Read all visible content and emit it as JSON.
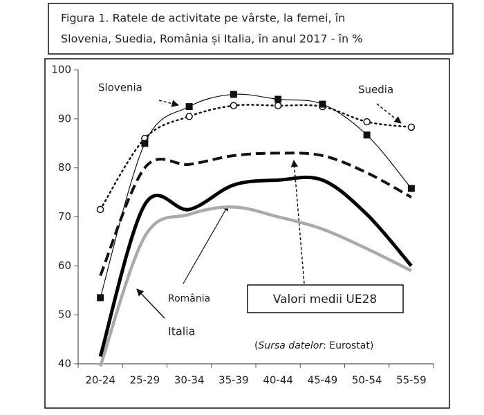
{
  "chart_data": {
    "type": "line",
    "title_lines": [
      "Figura 1. Ratele de activitate pe vârste,  la femei,  în",
      "Slovenia, Suedia, România și Italia, în anul 2017 - în %"
    ],
    "categories": [
      "20-24",
      "25-29",
      "30-34",
      "35-39",
      "40-44",
      "45-49",
      "50-54",
      "55-59"
    ],
    "ylim": [
      40,
      100
    ],
    "yticks": [
      40,
      50,
      60,
      70,
      80,
      90,
      100
    ],
    "grid": false,
    "series": [
      {
        "name": "Slovenia",
        "color": "#111111",
        "style": "solid",
        "width": 1.2,
        "marker": "square",
        "values": [
          53.5,
          85,
          92.5,
          95,
          94,
          93,
          86.7,
          75.8
        ]
      },
      {
        "name": "Suedia",
        "color": "#111111",
        "style": "dotted",
        "width": 2.5,
        "marker": "circle",
        "values": [
          71.5,
          86,
          90.5,
          92.7,
          92.7,
          92.5,
          89.4,
          88.3
        ]
      },
      {
        "name": "Valori medii UE28",
        "color": "#111111",
        "style": "dashed",
        "width": 4,
        "marker": null,
        "values": [
          58,
          80,
          80.7,
          82.5,
          83,
          82.5,
          79,
          74
        ]
      },
      {
        "name": "România",
        "color": "#000000",
        "style": "solid",
        "width": 5,
        "marker": null,
        "values": [
          41.5,
          72.5,
          71.5,
          76.5,
          77.5,
          77.5,
          70.5,
          60
        ]
      },
      {
        "name": "Italia",
        "color": "#aaaaaa",
        "style": "solid",
        "width": 4.5,
        "marker": null,
        "values": [
          39.5,
          66,
          70.5,
          72,
          70,
          67.5,
          63.5,
          59
        ]
      }
    ],
    "source": {
      "open": "(",
      "italic": "Sursa datelor",
      "rest": ": Eurostat)"
    }
  }
}
